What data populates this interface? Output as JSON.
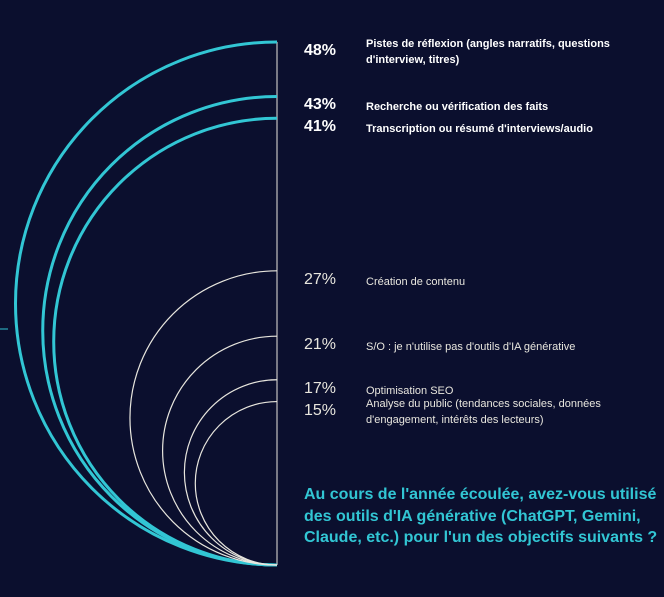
{
  "question": "Au cours de l'année écoulée, avez-vous utilisé des outils d'IA générative (ChatGPT, Gemini, Claude, etc.) pour l'un des objectifs suivants ?",
  "colors": {
    "background": "#0b0f2e",
    "highlight": "#32c6d4",
    "secondary": "#e8e6de",
    "text": "#ffffff"
  },
  "chart_data": {
    "type": "semicircle",
    "categories": [
      "Pistes de réflexion (angles narratifs, questions d'interview, titres)",
      "Recherche ou vérification des faits",
      "Transcription ou résumé d'interviews/audio",
      "Création de contenu",
      "S/O : je n'utilise pas d'outils d'IA générative",
      "Optimisation SEO",
      "Analyse du public (tendances sociales, données d'engagement, intérêts des lecteurs)"
    ],
    "values": [
      48,
      43,
      41,
      27,
      21,
      17,
      15
    ],
    "value_labels": [
      "48%",
      "43%",
      "41%",
      "27%",
      "21%",
      "17%",
      "15%"
    ],
    "highlighted": [
      true,
      true,
      true,
      false,
      false,
      false,
      false
    ]
  }
}
